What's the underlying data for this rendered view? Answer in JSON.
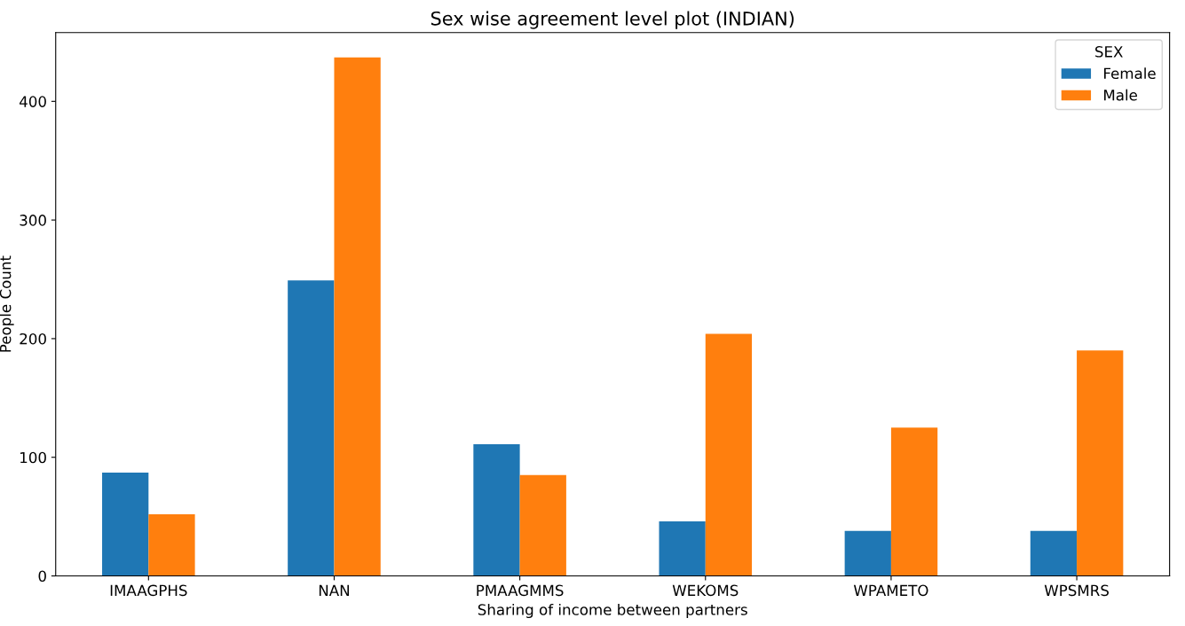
{
  "chart_data": {
    "type": "bar",
    "title": "Sex wise agreement level plot (INDIAN)",
    "xlabel": "Sharing of income between partners",
    "ylabel": "People Count",
    "legend_title": "SEX",
    "categories": [
      "IMAAGPHS",
      "NAN",
      "PMAAGMMS",
      "WEKOMS",
      "WPAMETO",
      "WPSMRS"
    ],
    "series": [
      {
        "name": "Female",
        "color": "#1f77b4",
        "values": [
          87,
          249,
          111,
          46,
          38,
          38
        ]
      },
      {
        "name": "Male",
        "color": "#ff7f0e",
        "values": [
          52,
          437,
          85,
          204,
          125,
          190
        ]
      }
    ],
    "ylim": [
      0,
      458
    ],
    "yticks": [
      0,
      100,
      200,
      300,
      400
    ],
    "grid": false,
    "legend": "top right"
  }
}
